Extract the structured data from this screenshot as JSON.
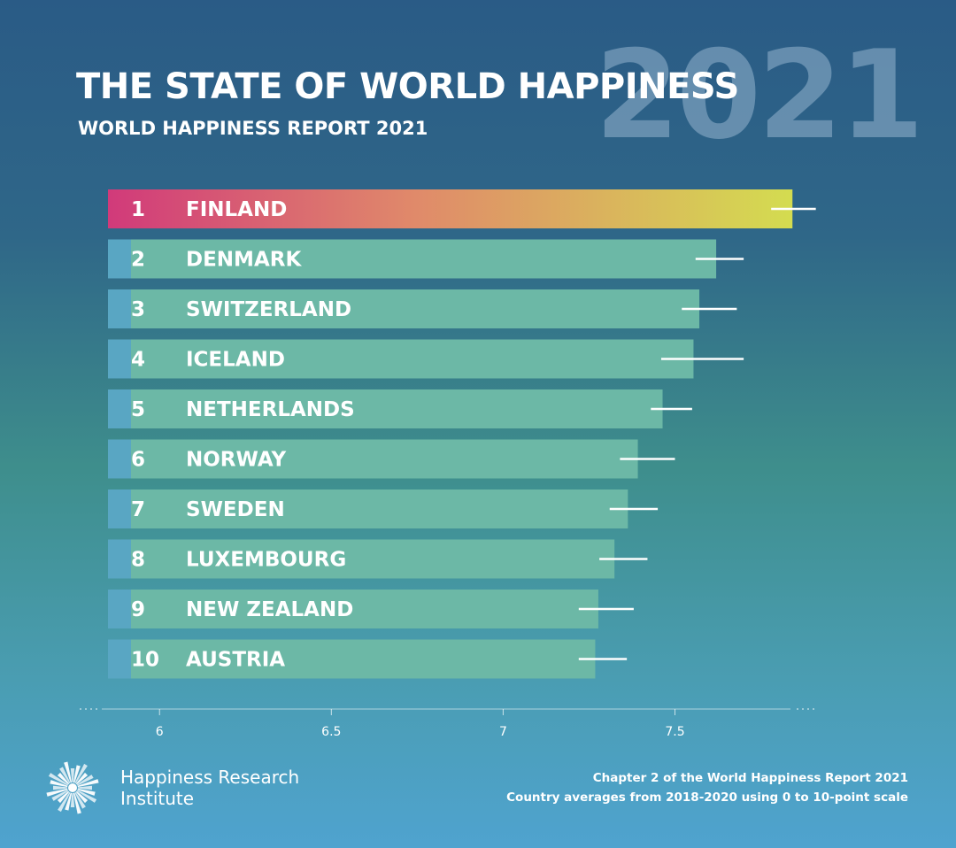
{
  "header": {
    "title": "THE STATE OF WORLD HAPPINESS",
    "subtitle": "WORLD HAPPINESS REPORT 2021",
    "year_watermark": "2021"
  },
  "chart_data": {
    "type": "bar",
    "orientation": "horizontal",
    "title": "THE STATE OF WORLD HAPPINESS",
    "subtitle": "WORLD HAPPINESS REPORT 2021",
    "ranks": [
      "1",
      "2",
      "3",
      "4",
      "5",
      "6",
      "7",
      "8",
      "9",
      "10"
    ],
    "categories": [
      "FINLAND",
      "DENMARK",
      "SWITZERLAND",
      "ICELAND",
      "NETHERLANDS",
      "NORWAY",
      "SWEDEN",
      "LUXEMBOURG",
      "NEW ZEALAND",
      "AUSTRIA"
    ],
    "values": [
      7.842,
      7.62,
      7.571,
      7.554,
      7.464,
      7.392,
      7.363,
      7.324,
      7.277,
      7.268
    ],
    "ci_low": [
      7.78,
      7.56,
      7.52,
      7.46,
      7.43,
      7.34,
      7.31,
      7.28,
      7.22,
      7.22
    ],
    "ci_high": [
      7.91,
      7.7,
      7.68,
      7.7,
      7.55,
      7.5,
      7.45,
      7.42,
      7.38,
      7.36
    ],
    "xaxis": {
      "ticks": [
        6,
        6.5,
        7,
        7.5
      ],
      "tick_labels": [
        "6",
        "6.5",
        "7",
        "7.5"
      ],
      "xlim": [
        5.85,
        7.88
      ]
    },
    "colors": {
      "highlight_start": "#d13a7a",
      "highlight_mid": "#e08a6a",
      "highlight_end": "#d4dc50",
      "bar": "#6cb8a6",
      "rank_cell": "#58a4c6",
      "error_bar": "#ffffff"
    },
    "grid": false,
    "legend": "none"
  },
  "footer": {
    "org_line1": "Happiness Research",
    "org_line2": "Institute",
    "note_line1": "Chapter 2 of the World Happiness Report 2021",
    "note_line2": "Country averages from 2018-2020 using 0 to 10-point scale",
    "logo_icon": "sunburst-logo-icon"
  }
}
